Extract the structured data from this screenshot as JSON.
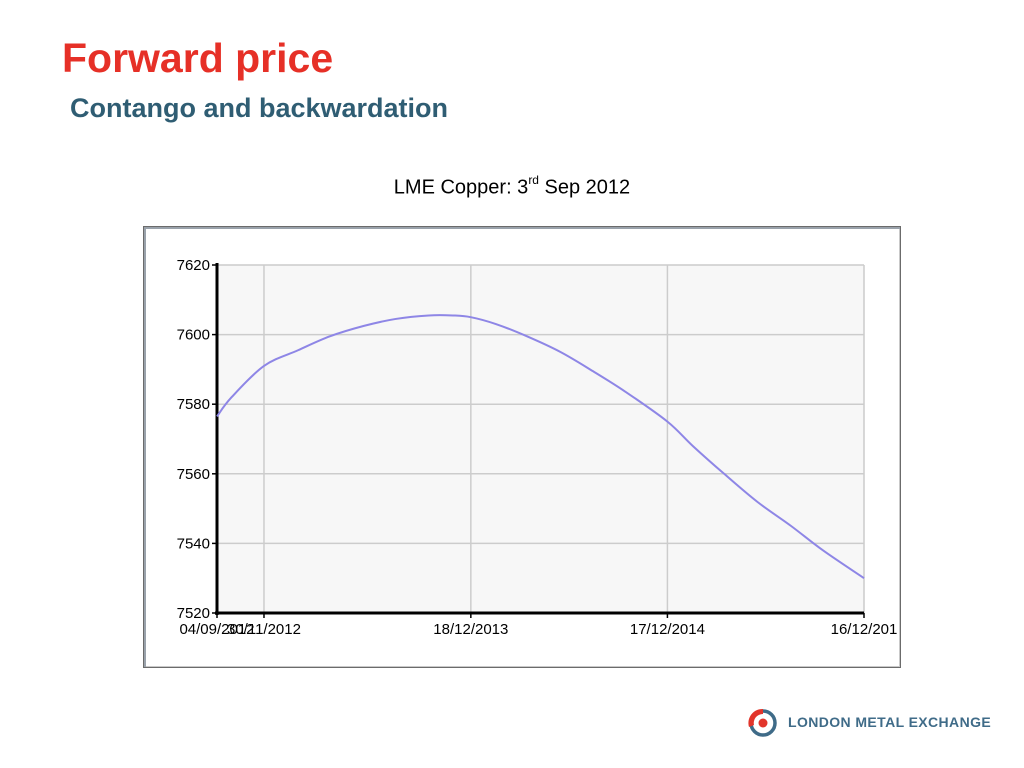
{
  "slide": {
    "title": "Forward price",
    "subtitle": "Contango and backwardation",
    "chart_caption_main": "LME Copper: 3",
    "chart_caption_sup": "rd",
    "chart_caption_tail": " Sep 2012"
  },
  "logo": {
    "text": "LONDON METAL EXCHANGE",
    "colors": {
      "arc_red": "#e2352b",
      "ring_blue": "#3f6b88"
    }
  },
  "colors": {
    "title": "#e63027",
    "subtitle": "#2f5d73",
    "series_line": "#8e86e6",
    "plot_bg": "#f7f7f7",
    "grid": "#cccccc",
    "axis": "#000000"
  },
  "chart_data": {
    "type": "line",
    "title": "LME Copper: 3rd Sep 2012",
    "xlabel": "",
    "ylabel": "",
    "ylim": [
      7520,
      7620
    ],
    "yticks": [
      7520,
      7540,
      7560,
      7580,
      7600,
      7620
    ],
    "xlim": [
      "2012-09-04",
      "2015-12-16"
    ],
    "xticks": [
      {
        "date": "2012-09-04",
        "label": "04/09/2012"
      },
      {
        "date": "2012-11-30",
        "label": "30/11/2012"
      },
      {
        "date": "2013-12-18",
        "label": "18/12/2013"
      },
      {
        "date": "2014-12-17",
        "label": "17/12/2014"
      },
      {
        "date": "2015-12-16",
        "label": "16/12/201"
      }
    ],
    "grid": true,
    "series": [
      {
        "x": [
          "2012-09-04",
          "2012-10-01",
          "2012-11-30",
          "2013-02-01",
          "2013-04-01",
          "2013-06-03",
          "2013-08-01",
          "2013-10-01",
          "2013-11-15",
          "2013-12-18",
          "2014-02-03",
          "2014-04-01",
          "2014-06-02",
          "2014-08-01",
          "2014-10-01",
          "2014-12-17",
          "2015-02-02",
          "2015-04-01",
          "2015-06-01",
          "2015-08-03",
          "2015-10-01",
          "2015-12-16"
        ],
        "values": [
          7576.5,
          7582,
          7591,
          7595.5,
          7599.5,
          7602.5,
          7604.5,
          7605.5,
          7605.5,
          7605,
          7603,
          7599.5,
          7595,
          7589.5,
          7583.5,
          7575,
          7568,
          7560,
          7552,
          7545,
          7538,
          7530
        ]
      }
    ]
  }
}
